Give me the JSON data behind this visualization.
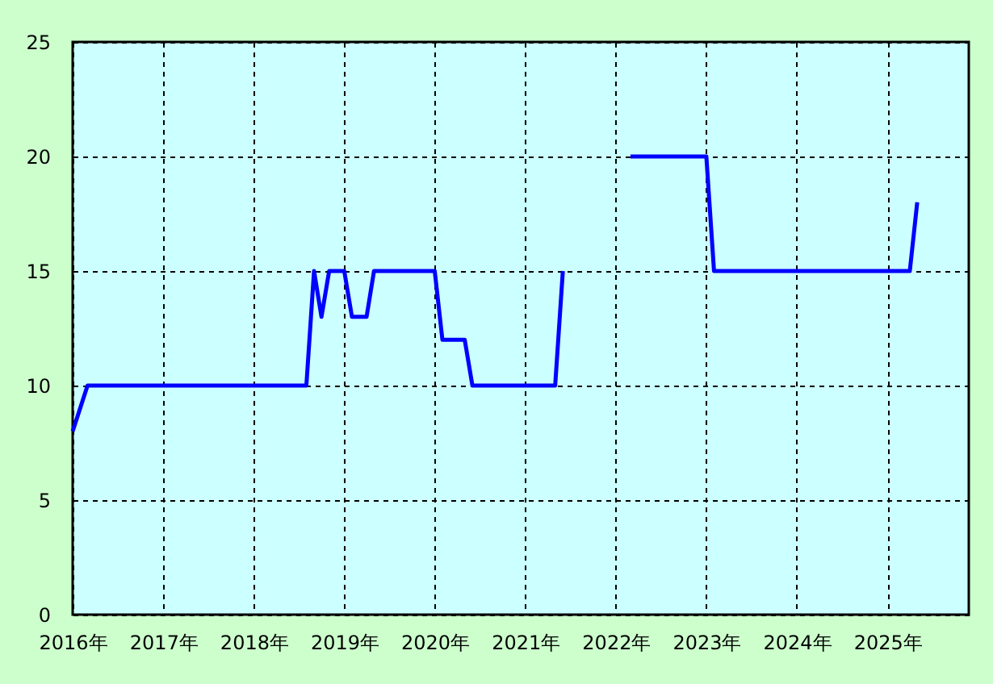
{
  "chart_data": {
    "type": "line",
    "x": [
      "2016-01",
      "2016-03",
      "2018-08",
      "2018-09",
      "2018-10",
      "2018-11",
      "2019-01",
      "2019-02",
      "2019-04",
      "2019-05",
      "2020-01",
      "2020-02",
      "2020-05",
      "2020-06",
      "2021-05",
      "2021-06",
      "2021-07",
      "2022-03",
      "2023-01",
      "2023-02",
      "2025-04",
      "2025-05"
    ],
    "series": [
      {
        "color": "#0000ff",
        "values": [
          8,
          10,
          10,
          15,
          13,
          15,
          15,
          13,
          13,
          15,
          15,
          12,
          12,
          10,
          10,
          15,
          null,
          20,
          20,
          15,
          15,
          18
        ]
      }
    ],
    "xlim": [
      "2016-01",
      "2025-11-25"
    ],
    "xticks": [
      {
        "value": "2016",
        "label": "2016年"
      },
      {
        "value": "2017",
        "label": "2017年"
      },
      {
        "value": "2018",
        "label": "2018年"
      },
      {
        "value": "2019",
        "label": "2019年"
      },
      {
        "value": "2020",
        "label": "2020年"
      },
      {
        "value": "2021",
        "label": "2021年"
      },
      {
        "value": "2022",
        "label": "2022年"
      },
      {
        "value": "2023",
        "label": "2023年"
      },
      {
        "value": "2024",
        "label": "2024年"
      },
      {
        "value": "2025",
        "label": "2025年"
      }
    ],
    "ylim": [
      0,
      25
    ],
    "yticks": [
      0,
      5,
      10,
      15,
      20,
      25
    ],
    "grid": true,
    "marker": "none",
    "line_style": "solid"
  }
}
